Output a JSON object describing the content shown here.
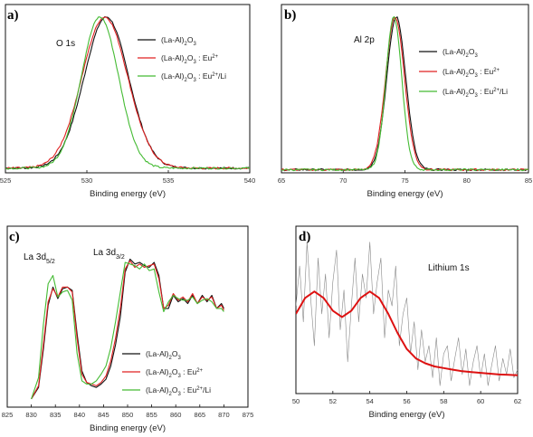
{
  "chart_data": [
    {
      "panel_label": "a)",
      "type": "line",
      "xlabel": "Binding energy (eV)",
      "ylabel": "",
      "xlim": [
        525,
        540
      ],
      "xticks": [
        525,
        530,
        535,
        540
      ],
      "annotation": "O 1s",
      "legend_position": "top-right",
      "series": [
        {
          "name": "(La-Al)₂O₃",
          "color": "#111111",
          "type": "peak",
          "center": 531.2,
          "width": 1.6,
          "base": 0.03,
          "height": 0.97
        },
        {
          "name": "(La-Al)₂O₃ : Eu²⁺",
          "color": "#e02020",
          "type": "peak",
          "center": 531.1,
          "width": 1.65,
          "base": 0.03,
          "height": 0.97
        },
        {
          "name": "(La-Al)₂O₃ : Eu²⁺/Li",
          "color": "#44bb33",
          "type": "peak",
          "center": 530.8,
          "width": 1.35,
          "base": 0.03,
          "height": 0.97
        }
      ]
    },
    {
      "panel_label": "b)",
      "type": "line",
      "xlabel": "Binding energy (eV)",
      "ylabel": "",
      "xlim": [
        65,
        85
      ],
      "xticks": [
        65,
        70,
        75,
        80,
        85
      ],
      "annotation": "Al 2p",
      "legend_position": "right",
      "series": [
        {
          "name": "(La-Al)₂O₃",
          "color": "#111111",
          "type": "peak",
          "center": 74.3,
          "width": 0.9,
          "base": 0.02,
          "height": 0.98
        },
        {
          "name": "(La-Al)₂O₃ : Eu²⁺",
          "color": "#e02020",
          "type": "peak",
          "center": 74.2,
          "width": 0.9,
          "base": 0.02,
          "height": 0.98
        },
        {
          "name": "(La-Al)₂O₃ : Eu²⁺/Li",
          "color": "#44bb33",
          "type": "peak",
          "center": 74.1,
          "width": 0.75,
          "base": 0.02,
          "height": 0.98
        }
      ]
    },
    {
      "panel_label": "c)",
      "type": "line",
      "xlabel": "Binding energy (eV)",
      "ylabel": "",
      "xlim": [
        825,
        875
      ],
      "xticks": [
        825,
        830,
        835,
        840,
        845,
        850,
        855,
        860,
        865,
        870,
        875
      ],
      "annotations": [
        "La 3d₅/₂",
        "La 3d₃/₂"
      ],
      "legend_position": "bottom-right",
      "series": [
        {
          "name": "(La-Al)₂O₃",
          "color": "#111111",
          "x": [
            830,
            831.5,
            832.5,
            833.5,
            834.5,
            835.5,
            836.5,
            837.5,
            838.5,
            839.5,
            840.5,
            841.5,
            842.5,
            843.5,
            844.5,
            845.5,
            846.5,
            847.5,
            848.5,
            849.5,
            850.5,
            851.5,
            852.5,
            853.5,
            854.5,
            855.5,
            856.5,
            857.5,
            858.5,
            859.5,
            860.5,
            861.5,
            862.5,
            863.5,
            864.5,
            865.5,
            866.5,
            867.5,
            868.5,
            869.5,
            870
          ],
          "y": [
            0.05,
            0.12,
            0.35,
            0.62,
            0.73,
            0.66,
            0.72,
            0.73,
            0.71,
            0.45,
            0.22,
            0.15,
            0.13,
            0.12,
            0.14,
            0.17,
            0.25,
            0.38,
            0.55,
            0.82,
            0.9,
            0.87,
            0.88,
            0.86,
            0.85,
            0.88,
            0.8,
            0.6,
            0.6,
            0.68,
            0.64,
            0.66,
            0.63,
            0.68,
            0.63,
            0.68,
            0.64,
            0.68,
            0.6,
            0.63,
            0.6
          ]
        },
        {
          "name": "(La-Al)₂O₃ : Eu²⁺",
          "color": "#e02020",
          "x": [
            830,
            831.5,
            832.5,
            833.5,
            834.5,
            835.5,
            836.5,
            837.5,
            838.5,
            839.5,
            840.5,
            841.5,
            842.5,
            843.5,
            844.5,
            845.5,
            846.5,
            847.5,
            848.5,
            849.5,
            850.5,
            851.5,
            852.5,
            853.5,
            854.5,
            855.5,
            856.5,
            857.5,
            858.5,
            859.5,
            860.5,
            861.5,
            862.5,
            863.5,
            864.5,
            865.5,
            866.5,
            867.5,
            868.5,
            869.5,
            870
          ],
          "y": [
            0.05,
            0.13,
            0.38,
            0.64,
            0.72,
            0.67,
            0.73,
            0.73,
            0.7,
            0.42,
            0.2,
            0.15,
            0.14,
            0.13,
            0.15,
            0.19,
            0.28,
            0.42,
            0.6,
            0.84,
            0.89,
            0.85,
            0.87,
            0.85,
            0.86,
            0.87,
            0.78,
            0.6,
            0.62,
            0.69,
            0.65,
            0.67,
            0.64,
            0.69,
            0.63,
            0.67,
            0.65,
            0.67,
            0.6,
            0.62,
            0.59
          ]
        },
        {
          "name": "(La-Al)₂O₃ : Eu²⁺/Li",
          "color": "#44bb33",
          "x": [
            830,
            831.5,
            832.5,
            833.5,
            834.5,
            835.5,
            836.5,
            837.5,
            838.5,
            839.5,
            840.5,
            841.5,
            842.5,
            843.5,
            844.5,
            845.5,
            846.5,
            847.5,
            848.5,
            849.5,
            850.5,
            851.5,
            852.5,
            853.5,
            854.5,
            855.5,
            856.5,
            857.5,
            858.5,
            859.5,
            860.5,
            861.5,
            862.5,
            863.5,
            864.5,
            865.5,
            866.5,
            867.5,
            868.5,
            869.5,
            870
          ],
          "y": [
            0.05,
            0.18,
            0.5,
            0.75,
            0.8,
            0.67,
            0.7,
            0.71,
            0.65,
            0.33,
            0.16,
            0.14,
            0.14,
            0.16,
            0.2,
            0.25,
            0.36,
            0.52,
            0.7,
            0.88,
            0.87,
            0.86,
            0.84,
            0.87,
            0.83,
            0.84,
            0.7,
            0.58,
            0.64,
            0.68,
            0.66,
            0.65,
            0.65,
            0.67,
            0.63,
            0.65,
            0.66,
            0.64,
            0.6,
            0.6,
            0.58
          ]
        }
      ]
    },
    {
      "panel_label": "d)",
      "type": "line",
      "xlabel": "Binding energy (eV)",
      "ylabel": "",
      "xlim": [
        50,
        62
      ],
      "xticks": [
        50,
        52,
        54,
        56,
        58,
        60,
        62
      ],
      "annotation": "Lithium 1s",
      "series": [
        {
          "name": "",
          "role": "raw-data",
          "color": "#888888",
          "x": [
            50,
            50.2,
            50.4,
            50.6,
            50.8,
            51,
            51.2,
            51.4,
            51.6,
            51.8,
            52,
            52.2,
            52.4,
            52.6,
            52.8,
            53,
            53.2,
            53.4,
            53.6,
            53.8,
            54,
            54.2,
            54.4,
            54.6,
            54.8,
            55,
            55.2,
            55.4,
            55.6,
            55.8,
            56,
            56.2,
            56.4,
            56.6,
            56.8,
            57,
            57.2,
            57.4,
            57.6,
            57.8,
            58,
            58.2,
            58.4,
            58.6,
            58.8,
            59,
            59.2,
            59.4,
            59.6,
            59.8,
            60,
            60.2,
            60.4,
            60.6,
            60.8,
            61,
            61.2,
            61.4,
            61.6,
            61.8,
            62
          ],
          "y": [
            0.55,
            0.8,
            0.45,
            0.95,
            0.6,
            0.3,
            0.85,
            0.5,
            0.75,
            0.35,
            0.7,
            0.9,
            0.4,
            0.65,
            0.2,
            0.55,
            0.85,
            0.45,
            0.75,
            0.6,
            0.95,
            0.5,
            0.7,
            0.85,
            0.35,
            0.65,
            0.55,
            0.8,
            0.3,
            0.5,
            0.6,
            0.25,
            0.45,
            0.15,
            0.4,
            0.2,
            0.3,
            0.1,
            0.35,
            0.05,
            0.25,
            0.3,
            0.08,
            0.22,
            0.35,
            0.12,
            0.28,
            0.05,
            0.2,
            0.3,
            0.1,
            0.25,
            0.05,
            0.18,
            0.3,
            0.08,
            0.22,
            0.12,
            0.28,
            0.1,
            0.15
          ]
        },
        {
          "name": "",
          "role": "fit",
          "color": "#dd1111",
          "x": [
            50,
            50.5,
            51,
            51.5,
            52,
            52.5,
            53,
            53.5,
            54,
            54.5,
            55,
            55.5,
            56,
            56.5,
            57,
            57.5,
            58,
            58.5,
            59,
            59.5,
            60,
            60.5,
            61,
            61.5,
            62
          ],
          "y": [
            0.5,
            0.6,
            0.64,
            0.6,
            0.52,
            0.48,
            0.52,
            0.6,
            0.64,
            0.6,
            0.5,
            0.38,
            0.28,
            0.22,
            0.19,
            0.17,
            0.16,
            0.15,
            0.14,
            0.135,
            0.13,
            0.125,
            0.12,
            0.118,
            0.115
          ]
        }
      ]
    }
  ]
}
